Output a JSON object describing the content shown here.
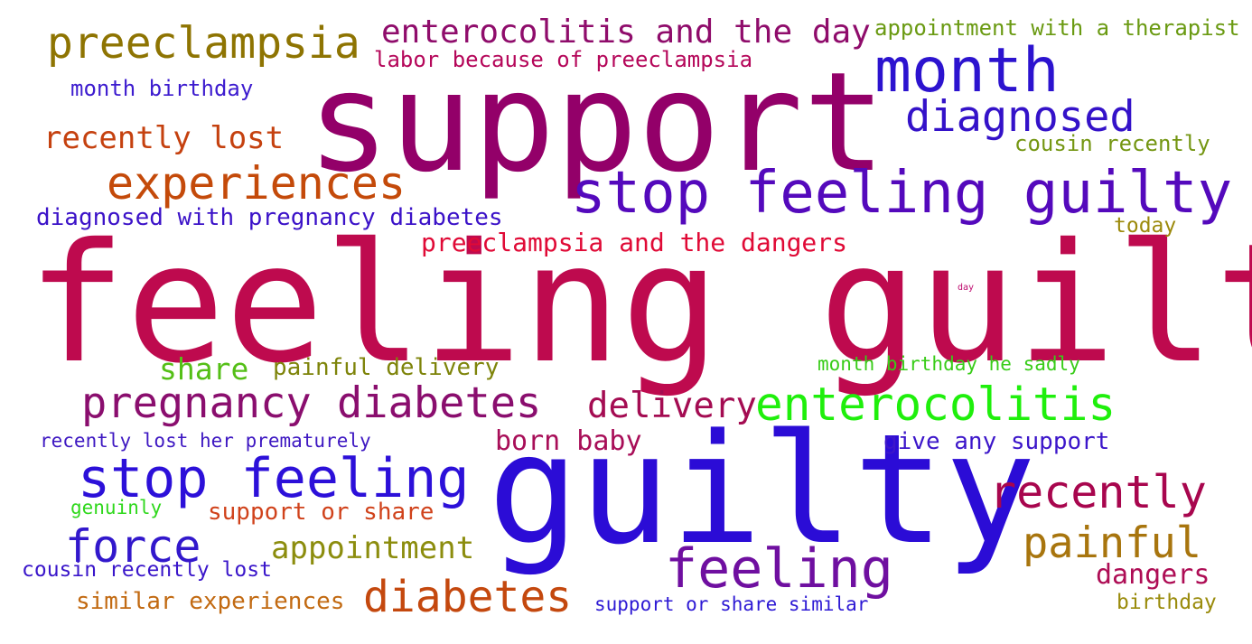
{
  "words": [
    {
      "text": "feeling guilty",
      "color": "#be0a4e"
    },
    {
      "text": "support",
      "color": "#930069"
    },
    {
      "text": "guilty",
      "color": "#2b0cd6"
    },
    {
      "text": "stop feeling guilty",
      "color": "#5409bc"
    },
    {
      "text": "month",
      "color": "#2c13cf"
    },
    {
      "text": "diagnosed",
      "color": "#3412c9"
    },
    {
      "text": "preeclampsia",
      "color": "#8e7402"
    },
    {
      "text": "enterocolitis and the day",
      "color": "#8f0c6b"
    },
    {
      "text": "appointment with a therapist",
      "color": "#6a9a12"
    },
    {
      "text": "labor because of preeclampsia",
      "color": "#b5075a"
    },
    {
      "text": "month birthday",
      "color": "#3d1ccf"
    },
    {
      "text": "recently lost",
      "color": "#c5410f"
    },
    {
      "text": "cousin recently",
      "color": "#749612"
    },
    {
      "text": "experiences",
      "color": "#c44a0a"
    },
    {
      "text": "diagnosed with pregnancy diabetes",
      "color": "#3b12c8"
    },
    {
      "text": "today",
      "color": "#9c8a0c"
    },
    {
      "text": "preeclampsia and the dangers",
      "color": "#e00a36"
    },
    {
      "text": "day",
      "color": "#be0a6e"
    },
    {
      "text": "share",
      "color": "#54bf16"
    },
    {
      "text": "painful delivery",
      "color": "#7e840a"
    },
    {
      "text": "month birthday he sadly",
      "color": "#38cc18"
    },
    {
      "text": "pregnancy diabetes",
      "color": "#8a0e6e"
    },
    {
      "text": "delivery",
      "color": "#a40c52"
    },
    {
      "text": "enterocolitis",
      "color": "#1fef0c"
    },
    {
      "text": "recently lost her prematurely",
      "color": "#3e18c2"
    },
    {
      "text": "born baby",
      "color": "#a80e58"
    },
    {
      "text": "give any support",
      "color": "#3c16ca"
    },
    {
      "text": "stop feeling",
      "color": "#2c10d9"
    },
    {
      "text": "recently",
      "color": "#a8064e"
    },
    {
      "text": "genuinly",
      "color": "#2fd81c"
    },
    {
      "text": "support or share",
      "color": "#d0421b"
    },
    {
      "text": "force",
      "color": "#3218cc"
    },
    {
      "text": "appointment",
      "color": "#8c8d0e"
    },
    {
      "text": "painful",
      "color": "#a8750e"
    },
    {
      "text": "feeling",
      "color": "#6f0fa0"
    },
    {
      "text": "cousin recently lost",
      "color": "#3a16ca"
    },
    {
      "text": "dangers",
      "color": "#ae0d55"
    },
    {
      "text": "similar experiences",
      "color": "#c26a12"
    },
    {
      "text": "diabetes",
      "color": "#c4480e"
    },
    {
      "text": "support or share similar",
      "color": "#2d19d4"
    },
    {
      "text": "birthday",
      "color": "#9a8b0c"
    }
  ]
}
